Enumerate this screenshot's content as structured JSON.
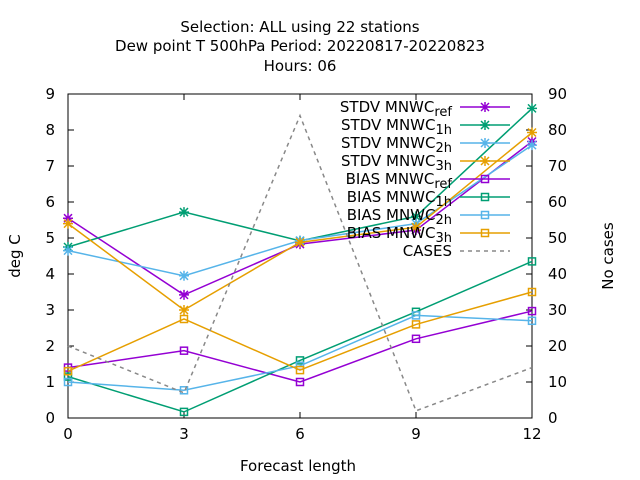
{
  "chart_data": {
    "type": "line",
    "title_lines": [
      "Selection: ALL using    22 stations",
      "Dew point T 500hPa   Period: 20220817-20220823",
      "Hours:  06"
    ],
    "xlabel": "Forecast length",
    "ylabel": "deg C",
    "y2label": "No cases",
    "x": [
      0,
      3,
      6,
      9,
      12
    ],
    "x_ticks": [
      "0",
      "3",
      "6",
      "9",
      "12"
    ],
    "xlim": [
      0,
      12
    ],
    "ylim": [
      0,
      9
    ],
    "y_ticks": [
      "0",
      "1",
      "2",
      "3",
      "4",
      "5",
      "6",
      "7",
      "8",
      "9"
    ],
    "y2lim": [
      0,
      90
    ],
    "y2_ticks": [
      "0",
      "10",
      "20",
      "30",
      "40",
      "50",
      "60",
      "70",
      "80",
      "90"
    ],
    "legend_position": "top-right",
    "series": [
      {
        "label": "STDV MNWC",
        "sub": "ref",
        "color": "#9400d3",
        "marker": "star",
        "dash": false,
        "axis": "y",
        "values": [
          5.55,
          3.42,
          4.83,
          5.22,
          7.68
        ]
      },
      {
        "label": "STDV MNWC",
        "sub": "1h",
        "color": "#009e73",
        "marker": "star",
        "dash": false,
        "axis": "y",
        "values": [
          4.75,
          5.72,
          4.92,
          5.6,
          8.6
        ]
      },
      {
        "label": "STDV MNWC",
        "sub": "2h",
        "color": "#56b4e9",
        "marker": "star",
        "dash": false,
        "axis": "y",
        "values": [
          4.65,
          3.95,
          4.93,
          5.4,
          7.58
        ]
      },
      {
        "label": "STDV MNWC",
        "sub": "3h",
        "color": "#e69f00",
        "marker": "star",
        "dash": false,
        "axis": "y",
        "values": [
          5.4,
          3.0,
          4.88,
          5.3,
          7.93
        ]
      },
      {
        "label": "BIAS MNWC",
        "sub": "ref",
        "color": "#9400d3",
        "marker": "square",
        "dash": false,
        "axis": "y",
        "values": [
          1.4,
          1.87,
          1.0,
          2.2,
          2.97
        ]
      },
      {
        "label": "BIAS MNWC",
        "sub": "1h",
        "color": "#009e73",
        "marker": "square",
        "dash": false,
        "axis": "y",
        "values": [
          1.15,
          0.17,
          1.6,
          2.95,
          4.35
        ]
      },
      {
        "label": "BIAS MNWC",
        "sub": "2h",
        "color": "#56b4e9",
        "marker": "square",
        "dash": false,
        "axis": "y",
        "values": [
          1.0,
          0.77,
          1.45,
          2.85,
          2.7
        ]
      },
      {
        "label": "BIAS MNWC",
        "sub": "3h",
        "color": "#e69f00",
        "marker": "square",
        "dash": false,
        "axis": "y",
        "values": [
          1.3,
          2.75,
          1.33,
          2.6,
          3.5
        ]
      },
      {
        "label": "CASES",
        "sub": "",
        "color": "#888888",
        "marker": "none",
        "dash": true,
        "axis": "y2",
        "values": [
          20,
          7,
          84,
          2,
          14
        ]
      }
    ]
  }
}
